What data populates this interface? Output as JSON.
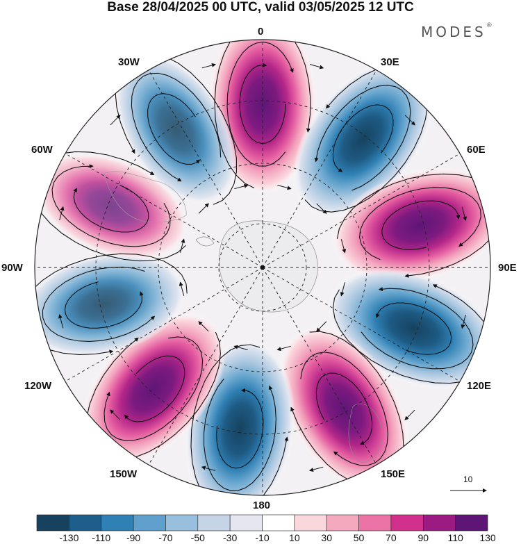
{
  "title": "Base 28/04/2025 00 UTC, valid 03/05/2025 12 UTC",
  "brand": {
    "name": "MODES",
    "mark": "®"
  },
  "longitude_labels": {
    "lon_0": "0",
    "lon_30e": "30E",
    "lon_60e": "60E",
    "lon_90e": "90E",
    "lon_120e": "120E",
    "lon_150e": "150E",
    "lon_180": "180",
    "lon_150w": "150W",
    "lon_120w": "120W",
    "lon_90w": "90W",
    "lon_60w": "60W",
    "lon_30w": "30W"
  },
  "reference_vector": {
    "label": "10"
  },
  "colorbar": {
    "colors": [
      "#16425f",
      "#1d5f8a",
      "#2f80b4",
      "#5fa1cc",
      "#98bfdd",
      "#c5d4e6",
      "#e6e6f0",
      "#ffffff",
      "#fad6dd",
      "#f4a9bf",
      "#ec73a6",
      "#d2308d",
      "#9c1b83",
      "#5e1676"
    ],
    "tick_labels": [
      "-130",
      "-110",
      "-90",
      "-70",
      "-50",
      "-30",
      "-10",
      "10",
      "30",
      "50",
      "70",
      "90",
      "110",
      "130"
    ]
  },
  "anomaly_centers": [
    {
      "lon_deg": 0,
      "sign": "positive",
      "peak": 130
    },
    {
      "lon_deg": 38,
      "sign": "negative",
      "peak": -130
    },
    {
      "lon_deg": 75,
      "sign": "positive",
      "peak": 130
    },
    {
      "lon_deg": 112,
      "sign": "negative",
      "peak": -130
    },
    {
      "lon_deg": 150,
      "sign": "positive",
      "peak": 130
    },
    {
      "lon_deg": 188,
      "sign": "negative",
      "peak": -130
    },
    {
      "lon_deg": 222,
      "sign": "positive",
      "peak": 130
    },
    {
      "lon_deg": 257,
      "sign": "negative",
      "peak": -90
    },
    {
      "lon_deg": 292,
      "sign": "positive",
      "peak": 70
    },
    {
      "lon_deg": 328,
      "sign": "negative",
      "peak": -90
    }
  ]
}
